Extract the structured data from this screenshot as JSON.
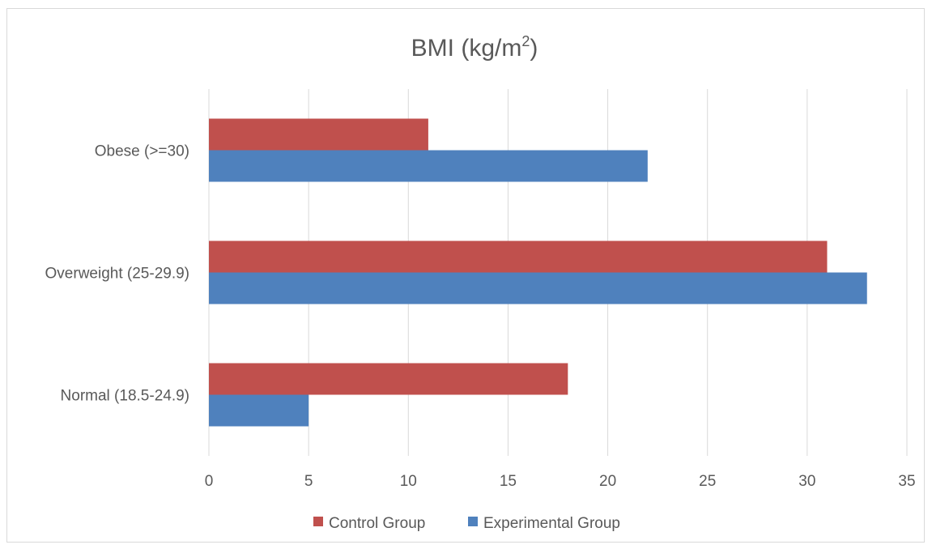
{
  "chart_data": {
    "type": "bar",
    "orientation": "horizontal",
    "title": "BMI (kg/m",
    "title_superscript": "2",
    "title_suffix": ")",
    "categories": [
      "Normal (18.5-24.9)",
      "Overweight (25-29.9)",
      "Obese (>=30)"
    ],
    "series": [
      {
        "name": "Control Group",
        "color": "#c0504d",
        "values": [
          18,
          31,
          11
        ]
      },
      {
        "name": "Experimental Group",
        "color": "#4f81bd",
        "values": [
          5,
          33,
          22
        ]
      }
    ],
    "xlim": [
      0,
      35
    ],
    "xticks": [
      0,
      5,
      10,
      15,
      20,
      25,
      30,
      35
    ],
    "xlabel": "",
    "ylabel": "",
    "grid": "vertical",
    "legend_position": "bottom"
  }
}
